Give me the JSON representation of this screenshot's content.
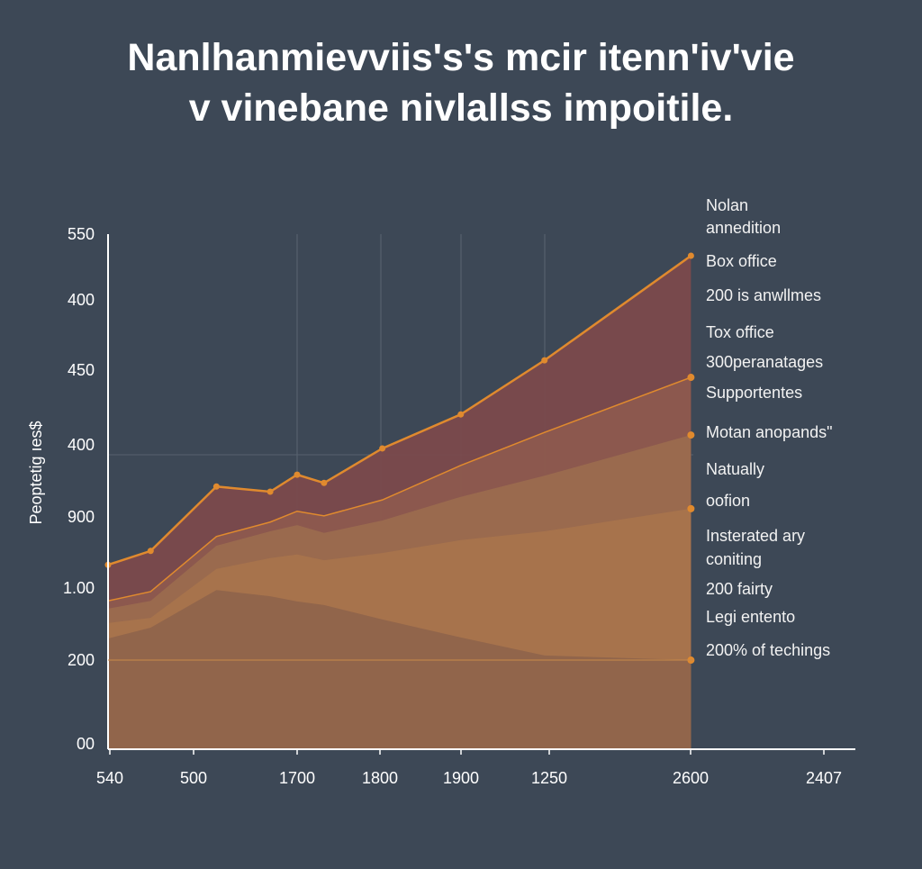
{
  "chart_data": {
    "type": "area",
    "title": [
      "Nanlhanmievviis's's mcir itenn'iv'vie",
      "v vinebane nivlallss impoitile."
    ],
    "y_label": "Peoptetig ıes$",
    "y_categories": [
      "00",
      "200",
      "1.00",
      "900",
      "400",
      "450",
      "400",
      "550"
    ],
    "categories": [
      "540",
      "500",
      "1700",
      "1800",
      "1900",
      "1250",
      "2600",
      "2407"
    ],
    "xlim": [
      0,
      100
    ],
    "ylim": [
      0,
      100
    ],
    "line_color": "#e08a2e",
    "x": [
      0,
      5.7,
      14.5,
      21.7,
      25.3,
      28.9,
      36.7,
      47.2,
      58.4,
      78.0
    ],
    "series": [
      {
        "color": "#7b4a4c",
        "values": [
          35.8,
          38.5,
          51.0,
          50.0,
          53.3,
          51.7,
          58.4,
          65.0,
          75.5,
          95.8
        ]
      },
      {
        "color": "#8d5a4e",
        "values": [
          28.8,
          30.6,
          41.3,
          44.1,
          46.2,
          45.3,
          48.4,
          55.1,
          61.5,
          72.2
        ]
      },
      {
        "color": "#9b6c4e",
        "values": [
          27.3,
          28.8,
          39.5,
          42.3,
          43.5,
          42.0,
          44.4,
          49.0,
          53.1,
          61.0
        ]
      },
      {
        "color": "#a8744c",
        "values": [
          24.5,
          25.5,
          35.0,
          37.1,
          37.8,
          36.7,
          38.1,
          40.6,
          42.3,
          46.7
        ]
      },
      {
        "color": "#8f644b",
        "values": [
          21.5,
          23.6,
          30.9,
          29.7,
          28.7,
          28.0,
          25.2,
          21.7,
          18.2,
          17.3
        ]
      }
    ],
    "annotations": [
      "Nolan",
      "annedition",
      "Box office",
      "200 is anwllmes",
      "Tox office",
      "300peranatages",
      "Supportentes",
      "Motan anopands\"",
      "Natually",
      "oofion",
      "Insterated ary",
      "coniting",
      "200 fairty",
      "Legi entento",
      "200% of techings"
    ]
  }
}
